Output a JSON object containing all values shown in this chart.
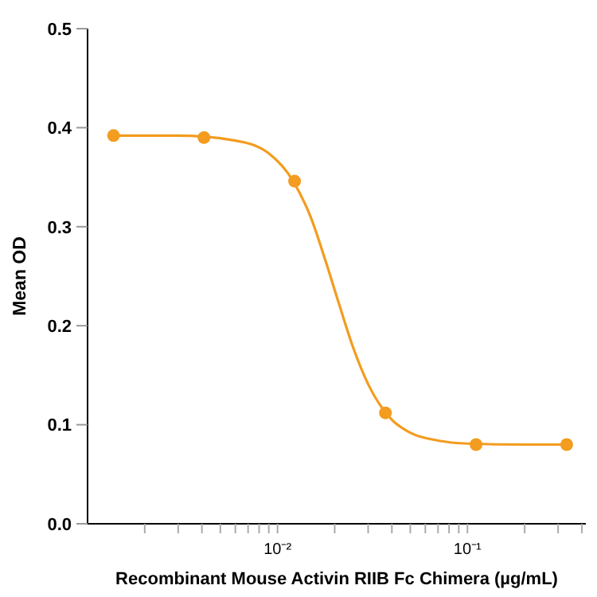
{
  "chart_data": {
    "type": "scatter",
    "xlabel": "Recombinant Mouse Activin RIIB Fc Chimera (µg/mL)",
    "ylabel": "Mean OD",
    "log": "x",
    "marker": "circle",
    "grid": false,
    "xlim": [
      0.001,
      0.42
    ],
    "ylim": [
      0,
      0.5
    ],
    "xticks": [
      {
        "value": 0.002,
        "label": null
      },
      {
        "value": 0.003,
        "label": null
      },
      {
        "value": 0.004,
        "label": null
      },
      {
        "value": 0.005,
        "label": null
      },
      {
        "value": 0.006,
        "label": null
      },
      {
        "value": 0.007,
        "label": null
      },
      {
        "value": 0.008,
        "label": null
      },
      {
        "value": 0.009,
        "label": null
      },
      {
        "value": 0.01,
        "label": "10⁻²"
      },
      {
        "value": 0.02,
        "label": null
      },
      {
        "value": 0.03,
        "label": null
      },
      {
        "value": 0.04,
        "label": null
      },
      {
        "value": 0.05,
        "label": null
      },
      {
        "value": 0.06,
        "label": null
      },
      {
        "value": 0.07,
        "label": null
      },
      {
        "value": 0.08,
        "label": null
      },
      {
        "value": 0.09,
        "label": null
      },
      {
        "value": 0.1,
        "label": "10⁻¹"
      },
      {
        "value": 0.2,
        "label": null
      },
      {
        "value": 0.3,
        "label": null
      },
      {
        "value": 0.4,
        "label": null
      }
    ],
    "yticks": [
      {
        "value": 0,
        "label": "0.0"
      },
      {
        "value": 0.1,
        "label": "0.1"
      },
      {
        "value": 0.2,
        "label": "0.2"
      },
      {
        "value": 0.3,
        "label": "0.3"
      },
      {
        "value": 0.4,
        "label": "0.4"
      },
      {
        "value": 0.5,
        "label": "0.5"
      }
    ],
    "series": [
      {
        "type": "line",
        "marker": "none",
        "color": "#f39c1f",
        "x": [
          0.0014,
          0.003,
          0.006,
          0.009,
          0.012,
          0.015,
          0.018,
          0.021,
          0.025,
          0.03,
          0.04,
          0.05,
          0.07,
          0.1,
          0.2,
          0.33
        ],
        "values": [
          0.392,
          0.392,
          0.387,
          0.374,
          0.347,
          0.309,
          0.264,
          0.223,
          0.178,
          0.141,
          0.105,
          0.092,
          0.084,
          0.081,
          0.08,
          0.08
        ]
      },
      {
        "color": "#f39c1f",
        "x": [
          0.00137,
          0.0041,
          0.0123,
          0.037,
          0.111,
          0.333
        ],
        "values": [
          0.392,
          0.39,
          0.346,
          0.112,
          0.08,
          0.08
        ]
      }
    ]
  }
}
